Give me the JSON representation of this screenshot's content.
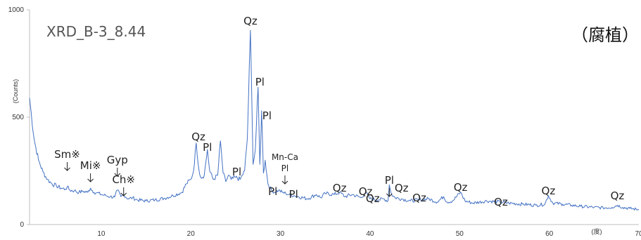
{
  "chart_data": {
    "type": "line",
    "title": "XRD_B-3_8.44",
    "subtitle": "（腐植）",
    "xlabel": "(度)",
    "ylabel": "(Counts)",
    "xlim": [
      2,
      70
    ],
    "ylim": [
      0,
      1000
    ],
    "x_ticks": [
      10,
      20,
      30,
      40,
      50,
      60,
      70
    ],
    "x_tick_labels": [
      "10",
      "20",
      "30",
      "40",
      "50",
      "60",
      "70"
    ],
    "y_ticks": [
      0,
      500,
      1000
    ],
    "y_tick_labels": [
      "0",
      "500",
      "1000"
    ],
    "grid": false,
    "legend": "none",
    "line_color": "#4472c4",
    "series": [
      {
        "x": [
          2,
          2.5,
          3,
          3.5,
          4,
          4.5,
          5,
          5.5,
          6,
          6.2,
          6.5,
          7,
          7.5,
          8,
          8.5,
          8.8,
          9.2,
          9.5,
          10,
          10.5,
          11,
          11.5,
          11.8,
          12.2,
          12.5,
          13,
          13.5,
          14,
          15,
          16,
          17,
          18,
          19,
          19.5,
          20,
          20.3,
          20.6,
          20.85,
          21.1,
          21.5,
          21.85,
          22.1,
          22.5,
          23,
          23.3,
          23.6,
          23.9,
          24.2,
          24.5,
          25,
          25.5,
          26,
          26.3,
          26.65,
          26.95,
          27.2,
          27.5,
          27.7,
          27.9,
          28.1,
          28.3,
          28.6,
          29,
          29.4,
          29.8,
          30.2,
          30.6,
          31,
          31.5,
          32,
          33,
          34,
          34.5,
          35,
          36,
          36.6,
          37.2,
          38,
          39,
          39.5,
          40,
          41,
          41.5,
          42,
          42.15,
          42.4,
          42.8,
          43.5,
          44.5,
          45.5,
          46.5,
          47.5,
          48.2,
          48.6,
          49.2,
          50.1,
          50.6,
          51.5,
          53,
          54.5,
          55.5,
          57,
          58.5,
          59.5,
          59.9,
          60.4,
          61.5,
          62.5,
          63.5,
          65,
          66,
          67,
          67.6,
          68.2,
          69,
          70
        ],
        "values": [
          590,
          400,
          300,
          245,
          210,
          190,
          180,
          170,
          165,
          175,
          160,
          158,
          150,
          155,
          150,
          170,
          150,
          148,
          140,
          135,
          130,
          128,
          160,
          130,
          140,
          120,
          125,
          115,
          110,
          115,
          122,
          135,
          150,
          190,
          210,
          250,
          380,
          270,
          220,
          230,
          350,
          250,
          210,
          230,
          390,
          240,
          200,
          230,
          210,
          220,
          210,
          250,
          400,
          905,
          280,
          350,
          640,
          280,
          530,
          240,
          300,
          190,
          160,
          150,
          160,
          150,
          145,
          140,
          135,
          130,
          120,
          140,
          125,
          145,
          140,
          150,
          130,
          140,
          125,
          150,
          120,
          115,
          120,
          110,
          185,
          140,
          125,
          120,
          110,
          115,
          120,
          105,
          130,
          105,
          110,
          150,
          110,
          100,
          110,
          105,
          100,
          95,
          90,
          95,
          135,
          100,
          95,
          90,
          85,
          80,
          78,
          80,
          90,
          80,
          75,
          70
        ]
      }
    ],
    "annotations": [
      {
        "text": "Qz",
        "x": 26.65
      },
      {
        "text": "Pl",
        "x": 27.7
      },
      {
        "text": "Pl",
        "x": 28.1
      },
      {
        "text": "Qz",
        "x": 20.85
      },
      {
        "text": "Pl",
        "x": 21.85
      },
      {
        "text": "Pl",
        "x": 24.5
      },
      {
        "text": "Mn-Ca",
        "x": 30.5
      },
      {
        "text": "Pl",
        "x": 30.5
      },
      {
        "text": "Pl",
        "x": 29.3
      },
      {
        "text": "Pl",
        "x": 31.3
      },
      {
        "text": "Sm※",
        "x": 6.2
      },
      {
        "text": "Mi※",
        "x": 8.8
      },
      {
        "text": "Gyp",
        "x": 11.8
      },
      {
        "text": "Ch※",
        "x": 12.5
      },
      {
        "text": "Qz",
        "x": 36.6
      },
      {
        "text": "Qz",
        "x": 39.5
      },
      {
        "text": "Qz",
        "x": 40.3
      },
      {
        "text": "Pl",
        "x": 42.15
      },
      {
        "text": "Qz",
        "x": 43.2
      },
      {
        "text": "Qz",
        "x": 45.5
      },
      {
        "text": "Qz",
        "x": 50.1
      },
      {
        "text": "Qz",
        "x": 54.6
      },
      {
        "text": "Qz",
        "x": 59.9
      },
      {
        "text": "Qz",
        "x": 67.6
      }
    ]
  }
}
